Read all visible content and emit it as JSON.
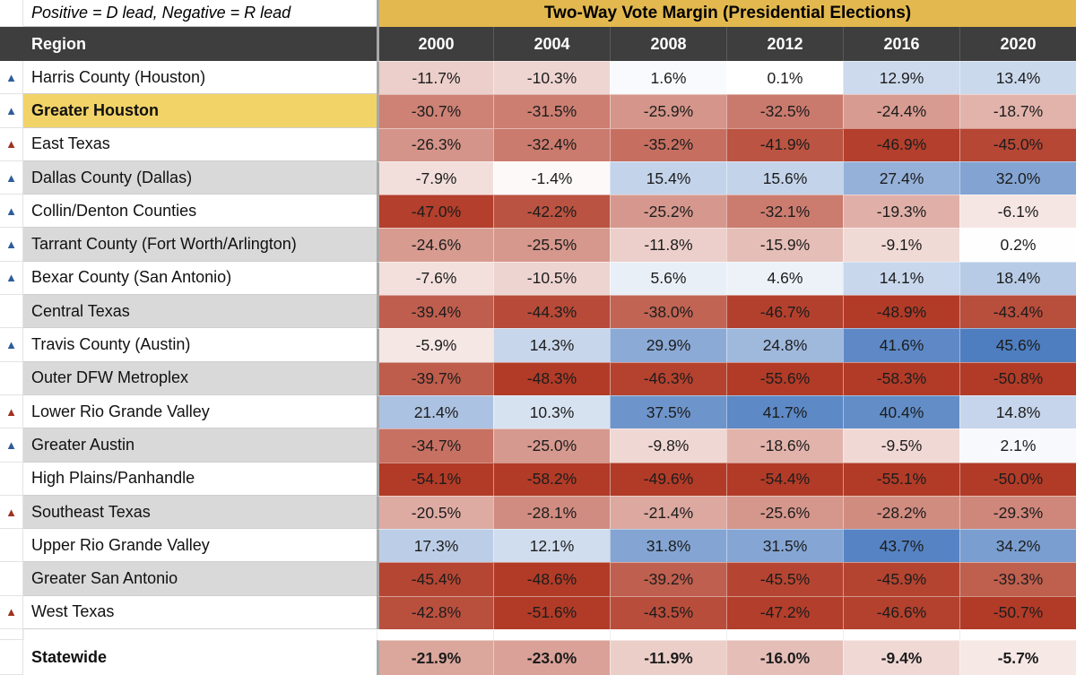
{
  "chart_data": {
    "type": "heatmap",
    "title": "Two-Way Vote Margin (Presidential Elections)",
    "note": "Positive = D lead, Negative = R lead",
    "region_label": "Region",
    "columns": [
      "2000",
      "2004",
      "2008",
      "2012",
      "2016",
      "2020"
    ],
    "trend_icon": "▲",
    "trend_colors": {
      "D": "#2e5c9a",
      "R": "#9e3322"
    },
    "palette": {
      "white": "#ffffff",
      "gray": "#d9d9d9",
      "gold": "#f2d367",
      "title_bg": "#e3b94f",
      "header_bg": "#3e3e3e"
    },
    "color_scale": {
      "negative": "#b13b27",
      "positive": "#4577bd",
      "neutral": "#ffffff",
      "domain": 48
    },
    "rows": [
      {
        "region": "Harris County (Houston)",
        "trend": "D",
        "bg": "white",
        "values": [
          -11.7,
          -10.3,
          1.6,
          0.1,
          12.9,
          13.4
        ]
      },
      {
        "region": "Greater Houston",
        "trend": "D",
        "bg": "gold",
        "bold": true,
        "values": [
          -30.7,
          -31.5,
          -25.9,
          -32.5,
          -24.4,
          -18.7
        ]
      },
      {
        "region": "East Texas",
        "trend": "R",
        "bg": "white",
        "values": [
          -26.3,
          -32.4,
          -35.2,
          -41.9,
          -46.9,
          -45.0
        ]
      },
      {
        "region": "Dallas County (Dallas)",
        "trend": "D",
        "bg": "gray",
        "values": [
          -7.9,
          -1.4,
          15.4,
          15.6,
          27.4,
          32.0
        ]
      },
      {
        "region": "Collin/Denton Counties",
        "trend": "D",
        "bg": "white",
        "values": [
          -47.0,
          -42.2,
          -25.2,
          -32.1,
          -19.3,
          -6.1
        ]
      },
      {
        "region": "Tarrant County (Fort Worth/Arlington)",
        "trend": "D",
        "bg": "gray",
        "values": [
          -24.6,
          -25.5,
          -11.8,
          -15.9,
          -9.1,
          0.2
        ]
      },
      {
        "region": "Bexar County (San Antonio)",
        "trend": "D",
        "bg": "white",
        "values": [
          -7.6,
          -10.5,
          5.6,
          4.6,
          14.1,
          18.4
        ]
      },
      {
        "region": "Central Texas",
        "trend": null,
        "bg": "gray",
        "values": [
          -39.4,
          -44.3,
          -38.0,
          -46.7,
          -48.9,
          -43.4
        ]
      },
      {
        "region": "Travis County (Austin)",
        "trend": "D",
        "bg": "white",
        "values": [
          -5.9,
          14.3,
          29.9,
          24.8,
          41.6,
          45.6
        ]
      },
      {
        "region": "Outer DFW Metroplex",
        "trend": null,
        "bg": "gray",
        "values": [
          -39.7,
          -48.3,
          -46.3,
          -55.6,
          -58.3,
          -50.8
        ]
      },
      {
        "region": "Lower Rio Grande Valley",
        "trend": "R",
        "bg": "white",
        "values": [
          21.4,
          10.3,
          37.5,
          41.7,
          40.4,
          14.8
        ]
      },
      {
        "region": "Greater Austin",
        "trend": "D",
        "bg": "gray",
        "values": [
          -34.7,
          -25.0,
          -9.8,
          -18.6,
          -9.5,
          2.1
        ]
      },
      {
        "region": "High Plains/Panhandle",
        "trend": null,
        "bg": "white",
        "values": [
          -54.1,
          -58.2,
          -49.6,
          -54.4,
          -55.1,
          -50.0
        ]
      },
      {
        "region": "Southeast Texas",
        "trend": "R",
        "bg": "gray",
        "values": [
          -20.5,
          -28.1,
          -21.4,
          -25.6,
          -28.2,
          -29.3
        ]
      },
      {
        "region": "Upper Rio Grande Valley",
        "trend": null,
        "bg": "white",
        "values": [
          17.3,
          12.1,
          31.8,
          31.5,
          43.7,
          34.2
        ]
      },
      {
        "region": "Greater San Antonio",
        "trend": null,
        "bg": "gray",
        "values": [
          -45.4,
          -48.6,
          -39.2,
          -45.5,
          -45.9,
          -39.3
        ]
      },
      {
        "region": "West Texas",
        "trend": "R",
        "bg": "white",
        "values": [
          -42.8,
          -51.6,
          -43.5,
          -47.2,
          -46.6,
          -50.7
        ]
      },
      {
        "region": "Statewide",
        "trend": null,
        "bg": "white",
        "bold": true,
        "total": true,
        "values": [
          -21.9,
          -23.0,
          -11.9,
          -16.0,
          -9.4,
          -5.7
        ]
      }
    ]
  }
}
